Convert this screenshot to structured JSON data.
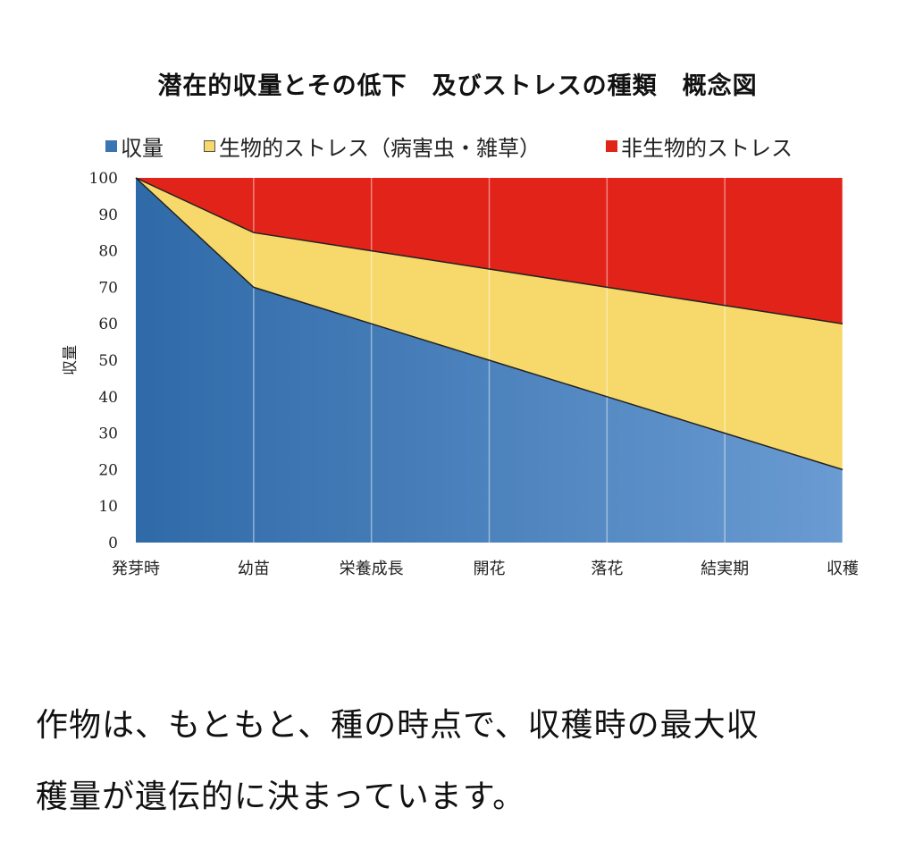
{
  "chart_data": {
    "type": "area",
    "stacked": true,
    "title": "潜在的収量とその低下　及びストレスの種類　概念図",
    "ylabel": "収量",
    "xlabel": "",
    "ylim": [
      0,
      100
    ],
    "yticks": [
      0,
      10,
      20,
      30,
      40,
      50,
      60,
      70,
      80,
      90,
      100
    ],
    "categories": [
      "発芽時",
      "幼苗",
      "栄養成長",
      "開花",
      "落花",
      "結実期",
      "収穫"
    ],
    "legend_position": "top",
    "grid": "vertical",
    "series": [
      {
        "name": "収量",
        "color": "#3a74b2",
        "values": [
          100,
          70,
          60,
          50,
          40,
          30,
          20
        ]
      },
      {
        "name": "生物的ストレス（病害虫・雑草）",
        "color": "#f6d96a",
        "values": [
          0,
          15,
          20,
          25,
          30,
          35,
          40
        ]
      },
      {
        "name": "非生物的ストレス",
        "color": "#e2231a",
        "values": [
          0,
          15,
          20,
          25,
          30,
          35,
          40
        ]
      }
    ]
  },
  "body_text": [
    "作物は、もともと、種の時点で、収穫時の最大収",
    "穫量が遺伝的に決まっています。"
  ]
}
